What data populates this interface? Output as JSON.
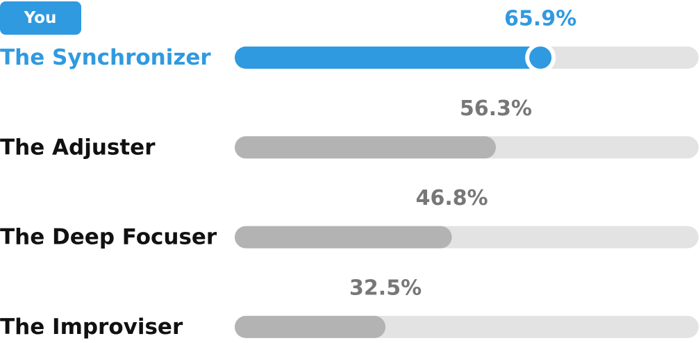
{
  "chart_data": {
    "type": "bar",
    "orientation": "horizontal",
    "categories": [
      "The Synchronizer",
      "The Adjuster",
      "The Deep Focuser",
      "The Improviser"
    ],
    "values": [
      65.9,
      56.3,
      46.8,
      32.5
    ],
    "value_labels": [
      "65.9%",
      "56.3%",
      "46.8%",
      "32.5%"
    ],
    "color": "#b3b3b3",
    "track_color": "#e3e3e3",
    "xlim": [
      0,
      100
    ],
    "highlight": {
      "index": 0,
      "label": "You",
      "color": "#2f9ae0"
    }
  }
}
